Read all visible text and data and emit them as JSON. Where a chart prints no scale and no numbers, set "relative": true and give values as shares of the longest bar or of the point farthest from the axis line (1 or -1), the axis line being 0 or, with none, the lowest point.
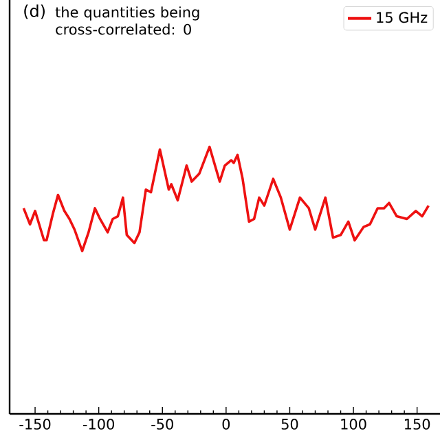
{
  "chart_data": {
    "type": "line",
    "title": "(d)",
    "annotations": [
      "the quantities being cross-correlated: 0"
    ],
    "relative": true,
    "xlim": [
      -170,
      168
    ],
    "xticks": [
      -150,
      -100,
      -50,
      0,
      50,
      100,
      150
    ],
    "legend": "top right",
    "series": [
      {
        "name": "15 GHz",
        "color": "#ee1111",
        "x": [
          -159,
          -154,
          -150,
          -143,
          -141,
          -136,
          -132,
          -127,
          -123,
          -119,
          -113,
          -108,
          -103,
          -99,
          -93,
          -89,
          -85,
          -81,
          -78,
          -72,
          -68,
          -63,
          -59,
          -52,
          -45,
          -43,
          -38,
          -31,
          -27,
          -21,
          -13,
          -5,
          -1,
          4,
          6,
          9,
          13,
          18,
          22,
          26,
          30,
          37,
          43,
          50,
          58,
          65,
          70,
          78,
          84,
          90,
          96,
          101,
          108,
          113,
          119,
          124,
          128,
          134,
          142,
          149,
          154,
          159
        ],
        "values": [
          0.77,
          0.71,
          0.76,
          0.65,
          0.65,
          0.75,
          0.82,
          0.76,
          0.73,
          0.69,
          0.61,
          0.68,
          0.77,
          0.73,
          0.68,
          0.73,
          0.74,
          0.81,
          0.67,
          0.64,
          0.68,
          0.84,
          0.83,
          0.99,
          0.84,
          0.86,
          0.8,
          0.93,
          0.87,
          0.9,
          1.0,
          0.87,
          0.93,
          0.95,
          0.94,
          0.97,
          0.88,
          0.72,
          0.73,
          0.81,
          0.78,
          0.88,
          0.81,
          0.69,
          0.81,
          0.77,
          0.69,
          0.81,
          0.66,
          0.67,
          0.72,
          0.65,
          0.7,
          0.71,
          0.77,
          0.77,
          0.79,
          0.74,
          0.73,
          0.76,
          0.74,
          0.78
        ]
      }
    ]
  }
}
